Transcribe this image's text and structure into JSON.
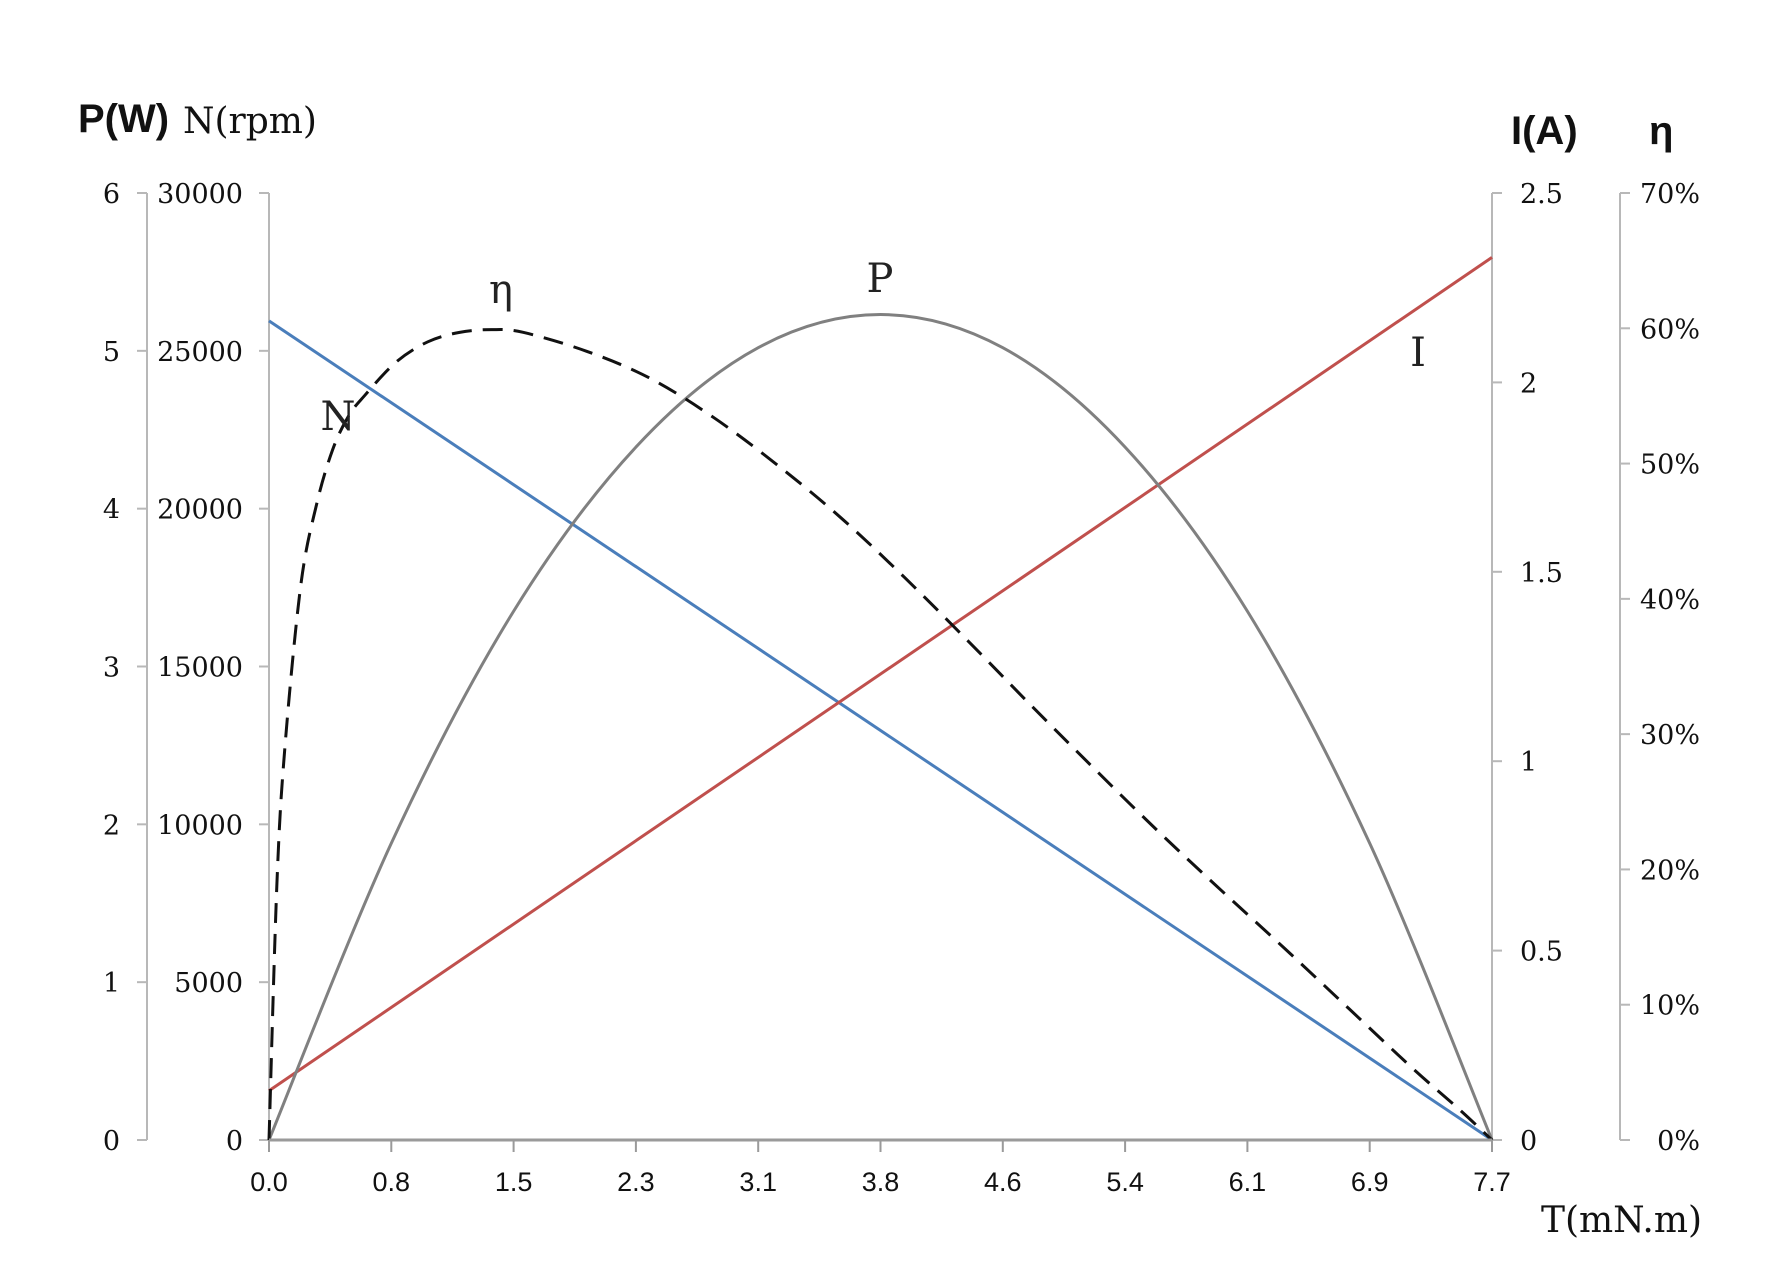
{
  "chart_data": {
    "type": "line",
    "title": "",
    "axes": {
      "x": {
        "label": "T(mN.m)",
        "min": 0,
        "max": 7.7,
        "ticks": [
          "0.0",
          "0.8",
          "1.5",
          "2.3",
          "3.1",
          "3.8",
          "4.6",
          "5.4",
          "6.1",
          "6.9",
          "7.7"
        ]
      },
      "y_power": {
        "label": "P(W)",
        "min": 0,
        "max": 6,
        "ticks": [
          "0",
          "1",
          "2",
          "3",
          "4",
          "5",
          "6"
        ]
      },
      "y_speed": {
        "label": "N(rpm)",
        "min": 0,
        "max": 30000,
        "ticks": [
          "0",
          "5000",
          "10000",
          "15000",
          "20000",
          "25000",
          "30000"
        ]
      },
      "y_current": {
        "label": "I(A)",
        "min": 0,
        "max": 2.5,
        "ticks": [
          "0",
          "0.5",
          "1",
          "1.5",
          "2",
          "2.5"
        ]
      },
      "y_efficiency": {
        "label": "η",
        "min": 0,
        "max": 0.7,
        "ticks": [
          "0%",
          "10%",
          "20%",
          "30%",
          "40%",
          "50%",
          "60%",
          "70%"
        ]
      }
    },
    "grid": false,
    "legend": "none",
    "series": [
      {
        "name": "N",
        "axis": "y_speed",
        "color": "#4a7ebb",
        "style": "solid",
        "x": [
          0,
          7.7
        ],
        "y": [
          25950,
          0
        ]
      },
      {
        "name": "I",
        "axis": "y_current",
        "color": "#c0504d",
        "style": "solid",
        "x": [
          0,
          7.7
        ],
        "y": [
          0.13,
          2.33
        ]
      },
      {
        "name": "P",
        "axis": "y_power",
        "color": "#808080",
        "style": "solid",
        "x": [
          0,
          0.77,
          1.54,
          2.31,
          3.08,
          3.85,
          4.62,
          5.39,
          6.16,
          6.93,
          7.7
        ],
        "y": [
          0,
          1.88,
          3.35,
          4.39,
          5.02,
          5.23,
          5.02,
          4.39,
          3.35,
          1.88,
          0
        ]
      },
      {
        "name": "η",
        "axis": "y_efficiency",
        "color": "#111111",
        "style": "dashed",
        "x": [
          0,
          0.05,
          0.1,
          0.2,
          0.3,
          0.4,
          0.5,
          0.6,
          0.8,
          1.0,
          1.2,
          1.4,
          1.6,
          2.0,
          2.4,
          2.8,
          3.2,
          3.6,
          4.0,
          4.4,
          4.8,
          5.2,
          5.6,
          6.0,
          6.4,
          6.8,
          7.2,
          7.5,
          7.7
        ],
        "y": [
          0,
          0.19,
          0.29,
          0.41,
          0.47,
          0.51,
          0.535,
          0.55,
          0.575,
          0.59,
          0.597,
          0.599,
          0.597,
          0.583,
          0.563,
          0.534,
          0.499,
          0.46,
          0.416,
          0.369,
          0.321,
          0.274,
          0.228,
          0.184,
          0.141,
          0.097,
          0.053,
          0.022,
          0
        ]
      }
    ],
    "annotations": [
      {
        "text": "N",
        "series": "N"
      },
      {
        "text": "η",
        "series": "η"
      },
      {
        "text": "P",
        "series": "P"
      },
      {
        "text": "I",
        "series": "I"
      }
    ]
  }
}
